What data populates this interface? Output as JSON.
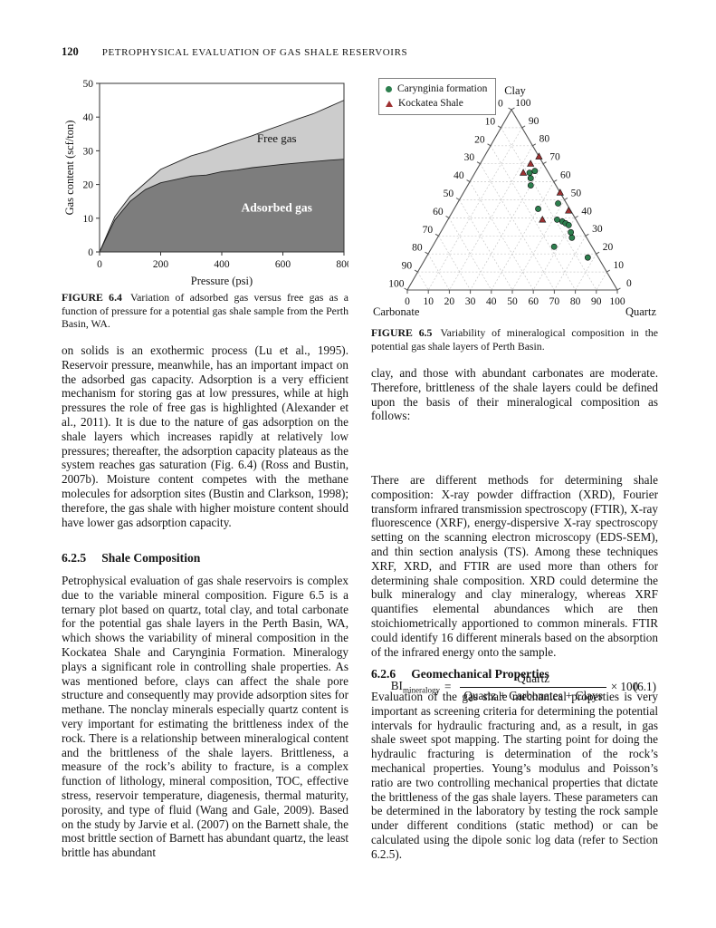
{
  "page": {
    "number": "120",
    "running_head": "PETROPHYSICAL EVALUATION OF GAS SHALE RESERVOIRS"
  },
  "figures": {
    "fig64": {
      "label": "FIGURE 6.4",
      "caption": "Variation of adsorbed gas versus free gas as a function of pressure for a potential gas shale sample from the Perth Basin, WA."
    },
    "fig65": {
      "label": "FIGURE 6.5",
      "caption": "Variability of mineralogical composition in the potential gas shale layers of Perth Basin.",
      "legend": [
        {
          "label": "Carynginia formation",
          "marker": "circle",
          "color": "#2d7f4e"
        },
        {
          "label": "Kockatea Shale",
          "marker": "triangle",
          "color": "#9e3132"
        }
      ]
    }
  },
  "sections": {
    "s625": {
      "number": "6.2.5",
      "title": "Shale Composition"
    },
    "s626": {
      "number": "6.2.6",
      "title": "Geomechanical Properties"
    }
  },
  "paragraphs": {
    "left1": "on solids is an exothermic process (Lu et al., 1995). Reservoir pressure, meanwhile, has an important impact on the adsorbed gas capacity. Adsorption is a very efficient mechanism for storing gas at low pressures, while at high pressures the role of free gas is highlighted (Alexander et al., 2011). It is due to the nature of gas adsorption on the shale layers which increases rapidly at relatively low pressures; thereafter, the adsorption capacity plateaus as the system reaches gas saturation (Fig. 6.4) (Ross and Bustin, 2007b). Moisture content competes with the methane molecules for adsorption sites (Bustin and Clarkson, 1998); therefore, the gas shale with higher moisture content should have lower gas adsorption capacity.",
    "left2": "Petrophysical evaluation of gas shale reservoirs is complex due to the variable mineral composition. Figure 6.5 is a ternary plot based on quartz, total clay, and total carbonate for the potential gas shale layers in the Perth Basin, WA, which shows the variability of mineral composition in the Kockatea Shale and Carynginia Formation. Mineralogy plays a significant role in controlling shale properties. As was mentioned before, clays can affect the shale pore structure and consequently may provide adsorption sites for methane. The nonclay minerals especially quartz content is very important for estimating the brittleness index of the rock. There is a relationship between mineralogical content and the brittleness of the shale layers. Brittleness, a measure of the rock’s ability to fracture, is a complex function of lithology, mineral composition, TOC, effective stress, reservoir temperature, diagenesis, thermal maturity, porosity, and type of fluid (Wang and Gale, 2009). Based on the study by Jarvie et al. (2007) on the Barnett shale, the most brittle section of Barnett has abundant quartz, the least brittle has abundant",
    "right1": "clay, and those with abundant carbonates are moderate. Therefore, brittleness of the shale layers could be defined upon the basis of their mineralogical composition as follows:",
    "right2": "There are different methods for determining shale composition: X-ray powder diffraction (XRD), Fourier transform infrared transmission spectroscopy (FTIR), X-ray fluorescence (XRF), energy-dispersive X-ray spectroscopy setting on the scanning electron microscopy (EDS-SEM), and thin section analysis (TS). Among these techniques XRF, XRD, and FTIR are used more than others for determining shale composition. XRD could determine the bulk mineralogy and clay mineralogy, whereas XRF quantifies elemental abundances which are then stoichiometrically apportioned to common minerals. FTIR could identify 16 different minerals based on the absorption of the infrared energy onto the sample.",
    "right3": "Evaluation of the gas shale mechanical properties is very important as screening criteria for determining the potential intervals for hydraulic fracturing and, as a result, in gas shale sweet spot mapping. The starting point for doing the hydraulic fracturing is determination of the rock’s mechanical properties. Young’s modulus and Poisson’s ratio are two controlling mechanical properties that dictate the brittleness of the gas shale layers. These parameters can be determined in the laboratory by testing the rock sample under different conditions (static method) or can be calculated using the dipole sonic log data (refer to Section 6.2.5)."
  },
  "equation": {
    "lhs": "BI",
    "lhs_sub": "mineralogy",
    "equals": "=",
    "numerator": "Quartz",
    "denominator": "Quartz + Carbonates + Clays",
    "multiplier": "× 100",
    "number": "(6.1)"
  },
  "chart_data": [
    {
      "id": "fig64-area",
      "type": "area",
      "stacked": true,
      "title": "",
      "xlabel": "Pressure (psi)",
      "ylabel": "Gas content (scf/ton)",
      "xlim": [
        0,
        800
      ],
      "ylim": [
        0,
        50
      ],
      "xticks": [
        0,
        200,
        400,
        600,
        800
      ],
      "yticks": [
        0,
        10,
        20,
        30,
        40,
        50
      ],
      "grid": false,
      "box": true,
      "x": [
        0,
        50,
        100,
        150,
        200,
        250,
        300,
        350,
        400,
        450,
        500,
        550,
        600,
        650,
        700,
        750,
        800
      ],
      "series": [
        {
          "name": "Adsorbed gas",
          "color": "#7d7d7d",
          "values": [
            0,
            9.5,
            15,
            18.5,
            20.5,
            21.5,
            22.5,
            22.8,
            23.8,
            24.3,
            25,
            25.5,
            26,
            26.4,
            26.8,
            27.2,
            27.5
          ]
        },
        {
          "name": "Free gas",
          "color": "#cccccc",
          "values": [
            0,
            1,
            1.5,
            2,
            4,
            5,
            6,
            7,
            7.7,
            8.7,
            9.5,
            10.7,
            11.8,
            13.1,
            14.2,
            15.8,
            17.5
          ]
        }
      ],
      "annotations": [
        {
          "text": "Free gas",
          "x": 580,
          "y": 32.5,
          "color": "#111111",
          "bold": false
        },
        {
          "text": "Adsorbed gas",
          "x": 580,
          "y": 12,
          "color": "#ffffff",
          "bold": true
        }
      ]
    },
    {
      "id": "fig65-ternary",
      "type": "scatter-ternary",
      "axes": {
        "top": "Clay",
        "bottom_left": "Carbonate",
        "bottom_right": "Quartz"
      },
      "tick_min": 0,
      "tick_max": 100,
      "tick_step": 10,
      "grid": "dashed",
      "legend_position": "top-left",
      "series": [
        {
          "name": "Carynginia formation",
          "marker": "circle",
          "color": "#2d7f4e",
          "points": [
            {
              "clay": 65,
              "carbonate": 9,
              "quartz": 26
            },
            {
              "clay": 66,
              "carbonate": 6,
              "quartz": 28
            },
            {
              "clay": 62,
              "carbonate": 10,
              "quartz": 28
            },
            {
              "clay": 58,
              "carbonate": 12,
              "quartz": 30
            },
            {
              "clay": 45,
              "carbonate": 15,
              "quartz": 40
            },
            {
              "clay": 48,
              "carbonate": 4,
              "quartz": 48
            },
            {
              "clay": 39,
              "carbonate": 9,
              "quartz": 52
            },
            {
              "clay": 38,
              "carbonate": 7,
              "quartz": 55
            },
            {
              "clay": 37,
              "carbonate": 6,
              "quartz": 57
            },
            {
              "clay": 36,
              "carbonate": 5,
              "quartz": 59
            },
            {
              "clay": 32,
              "carbonate": 6,
              "quartz": 62
            },
            {
              "clay": 29,
              "carbonate": 7,
              "quartz": 64
            },
            {
              "clay": 24,
              "carbonate": 18,
              "quartz": 58
            },
            {
              "clay": 18,
              "carbonate": 5,
              "quartz": 77
            }
          ]
        },
        {
          "name": "Kockatea Shale",
          "marker": "triangle",
          "color": "#9e3132",
          "points": [
            {
              "clay": 74,
              "carbonate": 0,
              "quartz": 26
            },
            {
              "clay": 70,
              "carbonate": 6,
              "quartz": 24
            },
            {
              "clay": 65,
              "carbonate": 12,
              "quartz": 23
            },
            {
              "clay": 54,
              "carbonate": 0,
              "quartz": 46
            },
            {
              "clay": 44,
              "carbonate": 1,
              "quartz": 55
            },
            {
              "clay": 39,
              "carbonate": 16,
              "quartz": 45
            }
          ]
        }
      ]
    }
  ]
}
